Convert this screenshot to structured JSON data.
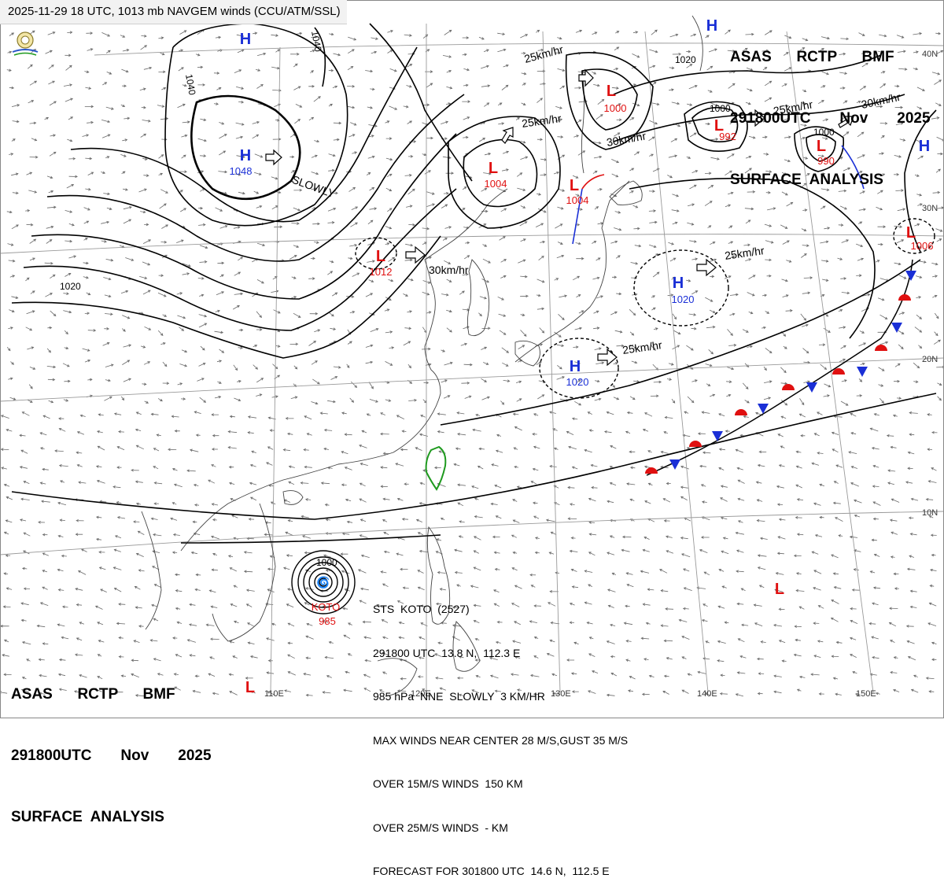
{
  "header": {
    "top_line": "2025-11-29 18 UTC, 1013 mb NAVGEM winds (CCU/ATM/SSL)",
    "analysis_block": {
      "line1": "ASAS      RCTP      BMF",
      "line2": "291800UTC       Nov       2025",
      "line3": "SURFACE  ANALYSIS"
    }
  },
  "colors": {
    "high": "#1a2fd6",
    "low": "#e01010",
    "isobar": "#000000",
    "graticule": "#9a9a9a",
    "wind": "#555555",
    "taiwan": "#1f9a1f",
    "front_blue": "#1a2fd6",
    "front_red": "#e01010"
  },
  "map": {
    "lat_labels": [
      "40N",
      "30N",
      "20N",
      "10N"
    ],
    "lon_labels": [
      "110E",
      "120E",
      "130E",
      "140E",
      "150E"
    ],
    "isobar_labels": [
      "1040",
      "1040",
      "1020",
      "1020",
      "1000",
      "1000",
      "1000"
    ],
    "pressure_systems": [
      {
        "type": "H",
        "value": ""
      },
      {
        "type": "H",
        "value": "1048"
      },
      {
        "type": "H",
        "value": ""
      },
      {
        "type": "H",
        "value": ""
      },
      {
        "type": "H",
        "value": "1020"
      },
      {
        "type": "H",
        "value": "1020"
      },
      {
        "type": "L",
        "value": "1012"
      },
      {
        "type": "L",
        "value": "1004"
      },
      {
        "type": "L",
        "value": "1004"
      },
      {
        "type": "L",
        "value": "1000"
      },
      {
        "type": "L",
        "value": "992"
      },
      {
        "type": "L",
        "value": "990"
      },
      {
        "type": "L",
        "value": "1006"
      },
      {
        "type": "L",
        "value": ""
      },
      {
        "type": "L",
        "value": ""
      }
    ],
    "motion_labels": [
      "SLOWLY",
      "25km/hr",
      "25km/hr",
      "30km/hr",
      "30km/hr",
      "25km/hr",
      "30km/hr",
      "25km/hr",
      "25km/hr"
    ],
    "typhoon": {
      "label": "KOTO",
      "pressure": "985"
    }
  },
  "storm_info": {
    "lines": [
      "STS  KOTO  (2527)",
      "291800 UTC  13.8 N,  112.3 E",
      "985 hPa  NNE  SLOWLY  3 KM/HR",
      "MAX WINDS NEAR CENTER 28 M/S,GUST 35 M/S",
      "OVER 15M/S WINDS  150 KM",
      "OVER 25M/S WINDS  - KM",
      "FORECAST FOR 301800 UTC  14.6 N,  112.5 E"
    ]
  }
}
